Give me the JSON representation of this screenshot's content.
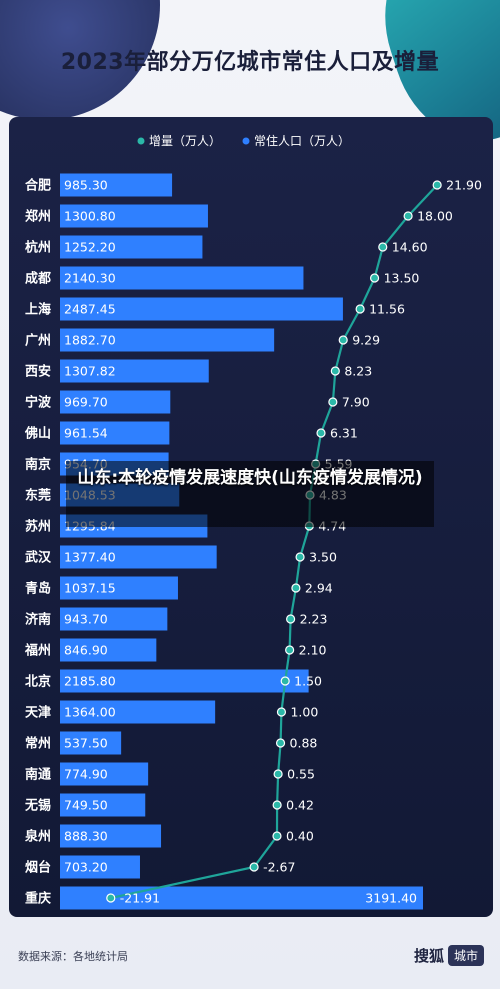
{
  "title": "2023年部分万亿城市常住人口及增量",
  "overlay_text": "山东:本轮疫情发展速度快(山东疫情发展情况)",
  "source": "数据来源：各地统计局",
  "brand": {
    "name": "搜狐",
    "tag": "城市"
  },
  "colors": {
    "bar": "#2f80ff",
    "line": "#1fa59a",
    "dot_fill": "#2bb8a8",
    "panel": "#161d3d"
  },
  "chart_data": {
    "type": "bar+line",
    "title": "2023年部分万亿城市常住人口及增量",
    "legend_position": "top",
    "categories": [
      "合肥",
      "郑州",
      "杭州",
      "成都",
      "上海",
      "广州",
      "西安",
      "宁波",
      "佛山",
      "南京",
      "东莞",
      "苏州",
      "武汉",
      "青岛",
      "济南",
      "福州",
      "北京",
      "天津",
      "常州",
      "南通",
      "无锡",
      "泉州",
      "烟台",
      "重庆"
    ],
    "series": [
      {
        "name": "增量（万人）",
        "kind": "line",
        "values": [
          21.9,
          18.0,
          14.6,
          13.5,
          11.56,
          9.29,
          8.23,
          7.9,
          6.31,
          5.59,
          4.83,
          4.74,
          3.5,
          2.94,
          2.23,
          2.1,
          1.5,
          1.0,
          0.88,
          0.55,
          0.42,
          0.4,
          -2.67,
          -21.91
        ],
        "labels": [
          "21.90",
          "18.00",
          "14.60",
          "13.50",
          "11.56",
          "9.29",
          "8.23",
          "7.90",
          "6.31",
          "5.59",
          "4.83",
          "4.74",
          "3.50",
          "2.94",
          "2.23",
          "2.10",
          "1.50",
          "1.00",
          "0.88",
          "0.55",
          "0.42",
          "0.40",
          "-2.67",
          "-21.91"
        ]
      },
      {
        "name": "常住人口（万人）",
        "kind": "bar",
        "values": [
          985.3,
          1300.8,
          1252.2,
          2140.3,
          2487.45,
          1882.7,
          1307.82,
          969.7,
          961.54,
          954.7,
          1048.53,
          1295.84,
          1377.4,
          1037.15,
          943.7,
          846.9,
          2185.8,
          1364.0,
          537.5,
          774.9,
          749.5,
          888.3,
          703.2,
          3191.4
        ],
        "labels": [
          "985.30",
          "1300.80",
          "1252.20",
          "2140.30",
          "2487.45",
          "1882.70",
          "1307.82",
          "969.70",
          "961.54",
          "954.70",
          "1048.53",
          "1295.84",
          "1377.40",
          "1037.15",
          "943.70",
          "846.90",
          "2185.80",
          "1364.00",
          "537.50",
          "774.90",
          "749.50",
          "888.30",
          "703.20",
          "3191.40"
        ]
      }
    ]
  }
}
